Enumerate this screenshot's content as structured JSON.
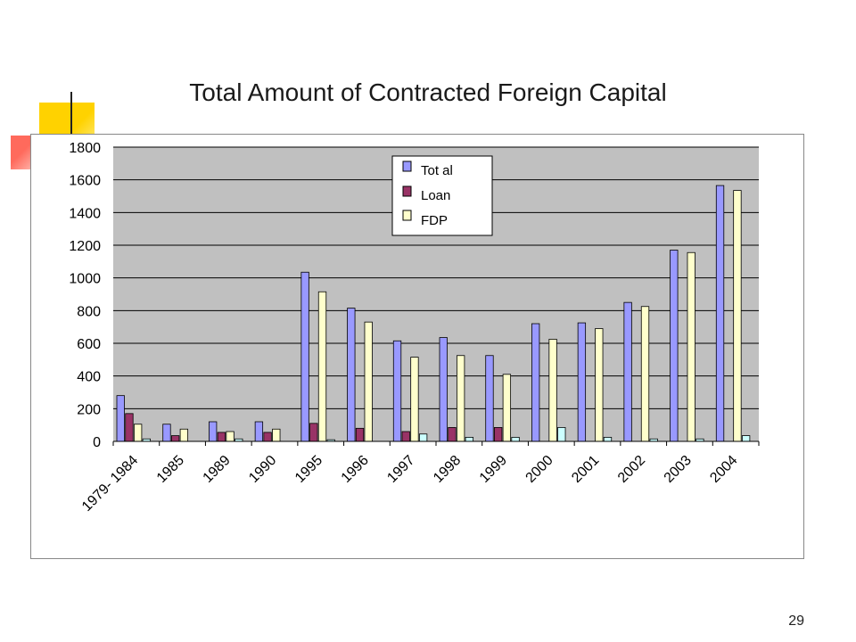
{
  "slide": {
    "title": "Total Amount of Contracted Foreign Capital",
    "page_number": "29"
  },
  "colors": {
    "deco_yellow": "#ffd200",
    "deco_red": "#ff6a5c",
    "plot_bg": "#c0c0c0",
    "total": "#9999ff",
    "loan": "#993366",
    "fdp": "#ffffcc",
    "fourth": "#ccffff"
  },
  "chart_data": {
    "type": "bar",
    "categories": [
      "1979- 1984",
      "1985",
      "1989",
      "1990",
      "1995",
      "1996",
      "1997",
      "1998",
      "1999",
      "2000",
      "2001",
      "2002",
      "2003",
      "2004"
    ],
    "series": [
      {
        "name": "Tot al",
        "color": "#9999ff",
        "values": [
          280,
          105,
          120,
          120,
          1035,
          815,
          615,
          635,
          525,
          720,
          725,
          850,
          1170,
          1565
        ]
      },
      {
        "name": "Loan",
        "color": "#993366",
        "values": [
          170,
          35,
          55,
          55,
          110,
          80,
          60,
          85,
          85,
          0,
          0,
          0,
          0,
          0
        ]
      },
      {
        "name": "FDP",
        "color": "#ffffcc",
        "values": [
          105,
          75,
          60,
          75,
          915,
          730,
          515,
          525,
          410,
          625,
          690,
          825,
          1155,
          1535
        ]
      },
      {
        "color": "#ccffff",
        "values": [
          15,
          0,
          15,
          0,
          10,
          0,
          45,
          25,
          25,
          85,
          25,
          15,
          15,
          35
        ]
      }
    ],
    "ylim": [
      0,
      1800
    ],
    "yticks": [
      "0",
      "200",
      "400",
      "600",
      "800",
      "1000",
      "1200",
      "1400",
      "1600",
      "1800"
    ],
    "grid": true,
    "legend": "top-center"
  }
}
